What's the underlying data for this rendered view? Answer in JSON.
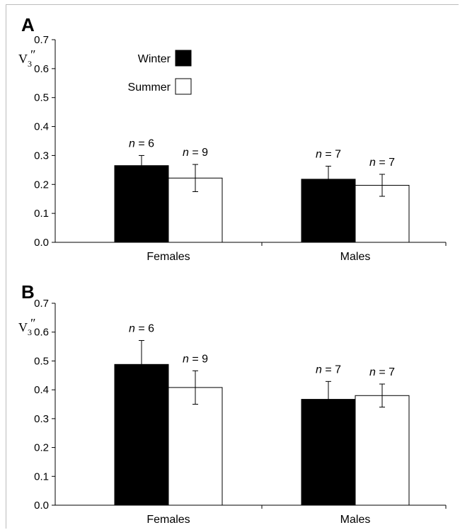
{
  "chart_data": [
    {
      "panel": "A",
      "type": "bar",
      "ylabel": "V",
      "ylabel_sub": "3",
      "ylabel_prime": "″",
      "ylim": [
        0,
        0.7
      ],
      "yticks": [
        "0.0",
        "0.1",
        "0.2",
        "0.3",
        "0.4",
        "0.5",
        "0.6",
        "0.7"
      ],
      "categories": [
        "Females",
        "Males"
      ],
      "legend": {
        "placement": "top-left"
      },
      "series": [
        {
          "name": "Winter",
          "color": "#000000",
          "values": [
            0.265,
            0.218
          ],
          "errors": [
            0.035,
            0.045
          ],
          "n_labels": [
            "n = 6",
            "n = 7"
          ]
        },
        {
          "name": "Summer",
          "color": "#ffffff",
          "values": [
            0.222,
            0.197
          ],
          "errors": [
            0.047,
            0.038
          ],
          "n_labels": [
            "n = 9",
            "n = 7"
          ]
        }
      ]
    },
    {
      "panel": "B",
      "type": "bar",
      "ylabel": "V",
      "ylabel_sub": "3",
      "ylabel_prime": "″",
      "ylim": [
        0,
        0.7
      ],
      "yticks": [
        "0.0",
        "0.1",
        "0.2",
        "0.3",
        "0.4",
        "0.5",
        "0.6",
        "0.7"
      ],
      "categories": [
        "Females",
        "Males"
      ],
      "series": [
        {
          "name": "Winter",
          "color": "#000000",
          "values": [
            0.488,
            0.367
          ],
          "errors": [
            0.083,
            0.062
          ],
          "n_labels": [
            "n = 6",
            "n = 7"
          ]
        },
        {
          "name": "Summer",
          "color": "#ffffff",
          "values": [
            0.408,
            0.38
          ],
          "errors": [
            0.058,
            0.04
          ],
          "n_labels": [
            "n = 9",
            "n = 7"
          ]
        }
      ]
    }
  ]
}
